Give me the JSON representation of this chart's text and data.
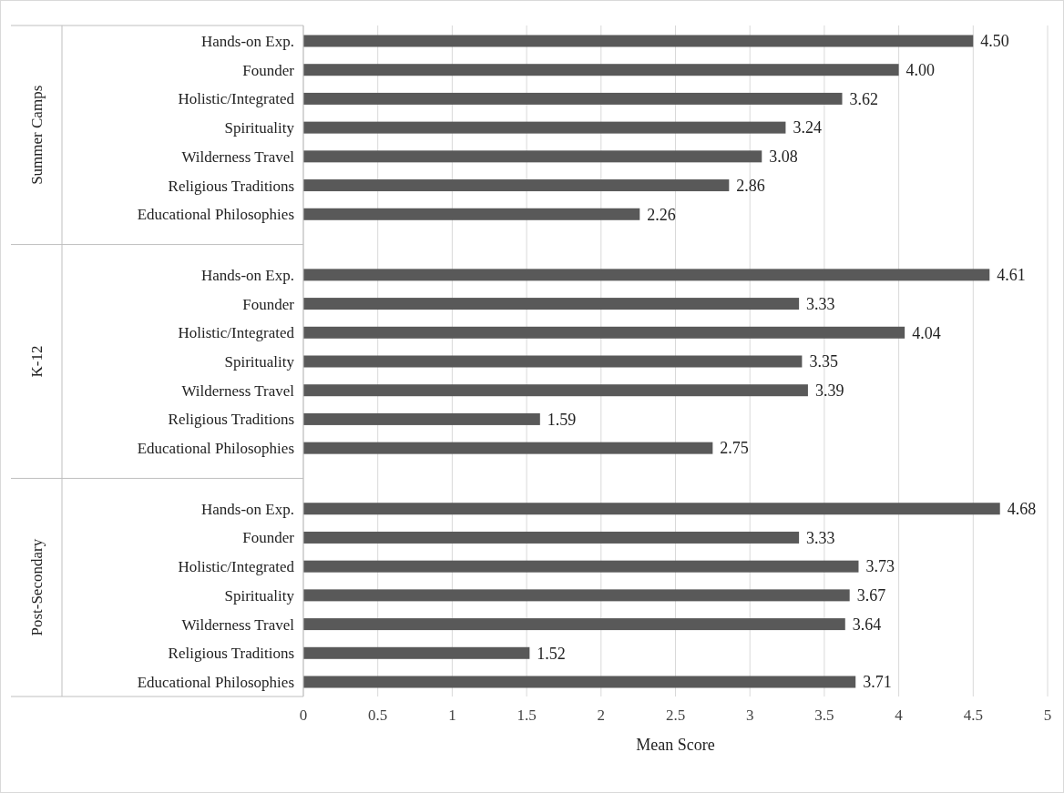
{
  "chart_data": {
    "type": "bar",
    "orientation": "horizontal",
    "xlabel": "Mean Score",
    "annotations": [
      "Summer Camps",
      "K-12",
      "Post-Secondary"
    ],
    "categories": [
      "Hands-on Exp.",
      "Founder",
      "Holistic/Integrated",
      "Spirituality",
      "Wilderness Travel",
      "Religious Traditions",
      "Educational Philosophies",
      "Hands-on Exp.",
      "Founder",
      "Holistic/Integrated",
      "Spirituality",
      "Wilderness Travel",
      "Religious Traditions",
      "Educational Philosophies",
      "Hands-on Exp.",
      "Founder",
      "Holistic/Integrated",
      "Spirituality",
      "Wilderness Travel",
      "Religious Traditions",
      "Educational Philosophies"
    ],
    "values": [
      4.5,
      4.0,
      3.62,
      3.24,
      3.08,
      2.86,
      2.26,
      4.61,
      3.33,
      4.04,
      3.35,
      3.39,
      1.59,
      2.75,
      4.68,
      3.33,
      3.73,
      3.67,
      3.64,
      1.52,
      3.71
    ],
    "value_labels": [
      "4.50",
      "4.00",
      "3.62",
      "3.24",
      "3.08",
      "2.86",
      "2.26",
      "4.61",
      "3.33",
      "4.04",
      "3.35",
      "3.39",
      "1.59",
      "2.75",
      "4.68",
      "3.33",
      "3.73",
      "3.67",
      "3.64",
      "1.52",
      "3.71"
    ],
    "color": "#595959",
    "xlim": [
      0,
      5
    ],
    "xticks": [
      0,
      0.5,
      1,
      1.5,
      2,
      2.5,
      3,
      3.5,
      4,
      4.5,
      5
    ],
    "grid": "x"
  }
}
